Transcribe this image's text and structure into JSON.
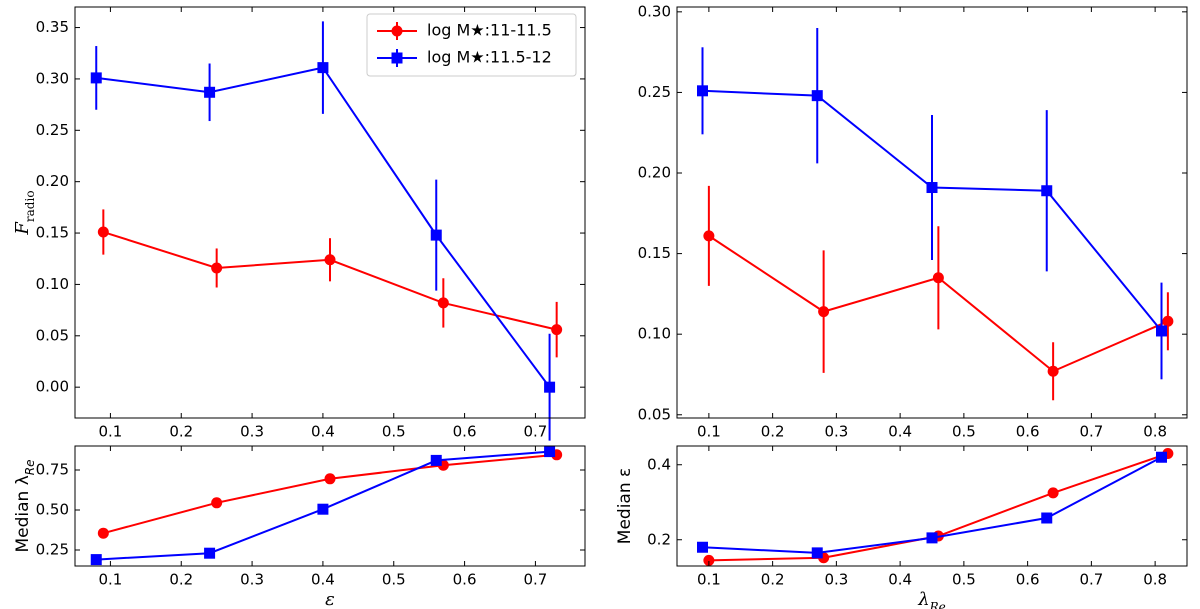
{
  "colors": {
    "red": "#ff0000",
    "blue": "#0000ff",
    "axis": "#000000"
  },
  "legend": {
    "placement": "top-right",
    "entries": [
      {
        "label": "log M★:11-11.5",
        "color": "#ff0000",
        "marker": "circle"
      },
      {
        "label": "log M★:11.5-12",
        "color": "#0000ff",
        "marker": "square"
      }
    ]
  },
  "chart_data": [
    {
      "id": "top_left",
      "type": "line",
      "xlabel": "",
      "ylabel": "F",
      "ylabel_sub": "radio",
      "xlim": [
        0.05,
        0.77
      ],
      "ylim": [
        -0.03,
        0.37
      ],
      "xticks": [
        0.1,
        0.2,
        0.3,
        0.4,
        0.5,
        0.6,
        0.7
      ],
      "xtick_labels": [
        "0.1",
        "0.2",
        "0.3",
        "0.4",
        "0.5",
        "0.6",
        "0.7"
      ],
      "yticks": [
        0.0,
        0.05,
        0.1,
        0.15,
        0.2,
        0.25,
        0.3,
        0.35
      ],
      "ytick_labels": [
        "0.00",
        "0.05",
        "0.10",
        "0.15",
        "0.20",
        "0.25",
        "0.30",
        "0.35"
      ],
      "series": [
        {
          "name": "log M★:11-11.5",
          "color": "#ff0000",
          "marker": "circle",
          "x": [
            0.09,
            0.25,
            0.41,
            0.57,
            0.73
          ],
          "y": [
            0.151,
            0.116,
            0.124,
            0.082,
            0.056
          ],
          "err": [
            0.022,
            0.019,
            0.021,
            0.024,
            0.027
          ]
        },
        {
          "name": "log M★:11.5-12",
          "color": "#0000ff",
          "marker": "square",
          "x": [
            0.08,
            0.24,
            0.4,
            0.56,
            0.72
          ],
          "y": [
            0.301,
            0.287,
            0.311,
            0.148,
            0.0
          ],
          "err": [
            0.031,
            0.028,
            0.045,
            0.054,
            0.052
          ]
        }
      ]
    },
    {
      "id": "bottom_left",
      "type": "line",
      "xlabel": "ε",
      "ylabel": "Median λ",
      "ylabel_sub": "Re",
      "xlim": [
        0.05,
        0.77
      ],
      "ylim": [
        0.15,
        0.9
      ],
      "xticks": [
        0.1,
        0.2,
        0.3,
        0.4,
        0.5,
        0.6,
        0.7
      ],
      "xtick_labels": [
        "0.1",
        "0.2",
        "0.3",
        "0.4",
        "0.5",
        "0.6",
        "0.7"
      ],
      "yticks": [
        0.25,
        0.5,
        0.75
      ],
      "ytick_labels": [
        "0.25",
        "0.50",
        "0.75"
      ],
      "series": [
        {
          "name": "log M★:11-11.5",
          "color": "#ff0000",
          "marker": "circle",
          "x": [
            0.09,
            0.25,
            0.41,
            0.57,
            0.73
          ],
          "y": [
            0.355,
            0.545,
            0.695,
            0.78,
            0.845
          ]
        },
        {
          "name": "log M★:11.5-12",
          "color": "#0000ff",
          "marker": "square",
          "x": [
            0.08,
            0.24,
            0.4,
            0.56,
            0.72
          ],
          "y": [
            0.19,
            0.23,
            0.505,
            0.81,
            0.865
          ]
        }
      ]
    },
    {
      "id": "top_right",
      "type": "line",
      "xlabel": "",
      "ylabel": "",
      "xlim": [
        0.05,
        0.85
      ],
      "ylim": [
        0.048,
        0.303
      ],
      "xticks": [
        0.1,
        0.2,
        0.3,
        0.4,
        0.5,
        0.6,
        0.7,
        0.8
      ],
      "xtick_labels": [
        "0.1",
        "0.2",
        "0.3",
        "0.4",
        "0.5",
        "0.6",
        "0.7",
        "0.8"
      ],
      "yticks": [
        0.05,
        0.1,
        0.15,
        0.2,
        0.25,
        0.3
      ],
      "ytick_labels": [
        "0.05",
        "0.10",
        "0.15",
        "0.20",
        "0.25",
        "0.30"
      ],
      "series": [
        {
          "name": "log M★:11-11.5",
          "color": "#ff0000",
          "marker": "circle",
          "x": [
            0.1,
            0.28,
            0.46,
            0.64,
            0.82
          ],
          "y": [
            0.161,
            0.114,
            0.135,
            0.077,
            0.108
          ],
          "err": [
            0.031,
            0.038,
            0.032,
            0.018,
            0.018
          ]
        },
        {
          "name": "log M★:11.5-12",
          "color": "#0000ff",
          "marker": "square",
          "x": [
            0.09,
            0.27,
            0.45,
            0.63,
            0.81
          ],
          "y": [
            0.251,
            0.248,
            0.191,
            0.189,
            0.102
          ],
          "err": [
            0.027,
            0.042,
            0.045,
            0.05,
            0.03
          ]
        }
      ]
    },
    {
      "id": "bottom_right",
      "type": "line",
      "xlabel": "λ",
      "xlabel_sub": "Re",
      "ylabel": "Median ε",
      "xlim": [
        0.05,
        0.85
      ],
      "ylim": [
        0.13,
        0.45
      ],
      "xticks": [
        0.1,
        0.2,
        0.3,
        0.4,
        0.5,
        0.6,
        0.7,
        0.8
      ],
      "xtick_labels": [
        "0.1",
        "0.2",
        "0.3",
        "0.4",
        "0.5",
        "0.6",
        "0.7",
        "0.8"
      ],
      "yticks": [
        0.2,
        0.4
      ],
      "ytick_labels": [
        "0.2",
        "0.4"
      ],
      "series": [
        {
          "name": "log M★:11-11.5",
          "color": "#ff0000",
          "marker": "circle",
          "x": [
            0.1,
            0.28,
            0.46,
            0.64,
            0.82
          ],
          "y": [
            0.145,
            0.152,
            0.21,
            0.325,
            0.43
          ]
        },
        {
          "name": "log M★:11.5-12",
          "color": "#0000ff",
          "marker": "square",
          "x": [
            0.09,
            0.27,
            0.45,
            0.63,
            0.81
          ],
          "y": [
            0.18,
            0.165,
            0.205,
            0.258,
            0.42
          ]
        }
      ]
    }
  ]
}
